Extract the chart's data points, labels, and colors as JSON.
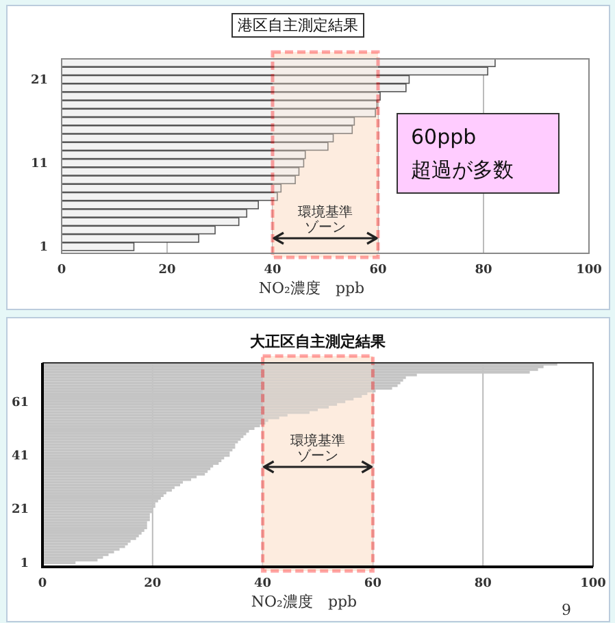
{
  "chart_data": [
    {
      "type": "bar",
      "orientation": "horizontal",
      "title": "港区自主測定結果",
      "xlabel": "NO₂濃度　ppb",
      "categories": [
        null,
        null,
        "21",
        null,
        null,
        null,
        null,
        null,
        null,
        null,
        null,
        null,
        "11",
        null,
        null,
        null,
        null,
        null,
        null,
        null,
        null,
        null,
        "1"
      ],
      "values": [
        82.2,
        80.8,
        65.9,
        65.3,
        60.4,
        59.8,
        59.5,
        55.5,
        55.1,
        51.5,
        50.5,
        46.2,
        45.9,
        45,
        44.3,
        41.6,
        40.9,
        37.3,
        35.1,
        33.6,
        29.1,
        26,
        13.7
      ],
      "color": "#f2f2f2",
      "xlim": [
        0,
        100
      ],
      "xticks": [
        0,
        20,
        40,
        60,
        80,
        100
      ],
      "grid": "x",
      "bands": [
        {
          "axis": "x",
          "from": 40,
          "to": 60,
          "label": "環境基準ゾーン",
          "color": "#fde9d9"
        }
      ],
      "annotations": [
        "60ppb\n超過が多数"
      ]
    },
    {
      "type": "bar",
      "orientation": "horizontal",
      "title": "大正区自主測定結果",
      "xlabel": "NO₂濃度　ppb",
      "categories": [
        null,
        null,
        null,
        null,
        null,
        null,
        null,
        null,
        null,
        null,
        null,
        null,
        null,
        null,
        "61",
        null,
        null,
        null,
        null,
        null,
        null,
        null,
        null,
        null,
        null,
        null,
        null,
        null,
        null,
        null,
        null,
        null,
        null,
        null,
        "41",
        null,
        null,
        null,
        null,
        null,
        null,
        null,
        null,
        null,
        null,
        null,
        null,
        null,
        null,
        null,
        null,
        null,
        null,
        null,
        "21",
        null,
        null,
        null,
        null,
        null,
        null,
        null,
        null,
        null,
        null,
        null,
        null,
        null,
        null,
        null,
        null,
        null,
        null,
        null,
        "1"
      ],
      "values": [
        93.5,
        91,
        90,
        88.5,
        68,
        66,
        65.5,
        65,
        64.5,
        63.5,
        60.5,
        59,
        58,
        56.5,
        55,
        53.5,
        52,
        50,
        48.5,
        44.5,
        43,
        41,
        40.5,
        39.5,
        38.5,
        37.5,
        37,
        36.5,
        36,
        35.5,
        35,
        35,
        34.5,
        34,
        34,
        33,
        32.5,
        32,
        31,
        30.5,
        30,
        29.5,
        28,
        27,
        25.5,
        25,
        24,
        23.5,
        22.5,
        22,
        21.5,
        21,
        20.5,
        20.5,
        20,
        20,
        19.5,
        19.5,
        19.5,
        19,
        19,
        19,
        18.5,
        18,
        17.5,
        17,
        16,
        15.5,
        15,
        14,
        13,
        12,
        11,
        10,
        6
      ],
      "color": "#c4c4c4",
      "xlim": [
        0,
        100
      ],
      "xticks": [
        0,
        20,
        40,
        60,
        80,
        100
      ],
      "grid": "x",
      "bands": [
        {
          "axis": "x",
          "from": 40,
          "to": 60,
          "label": "環境基準ゾーン",
          "color": "#fde9d9"
        }
      ],
      "annotations": [
        "9"
      ]
    }
  ]
}
